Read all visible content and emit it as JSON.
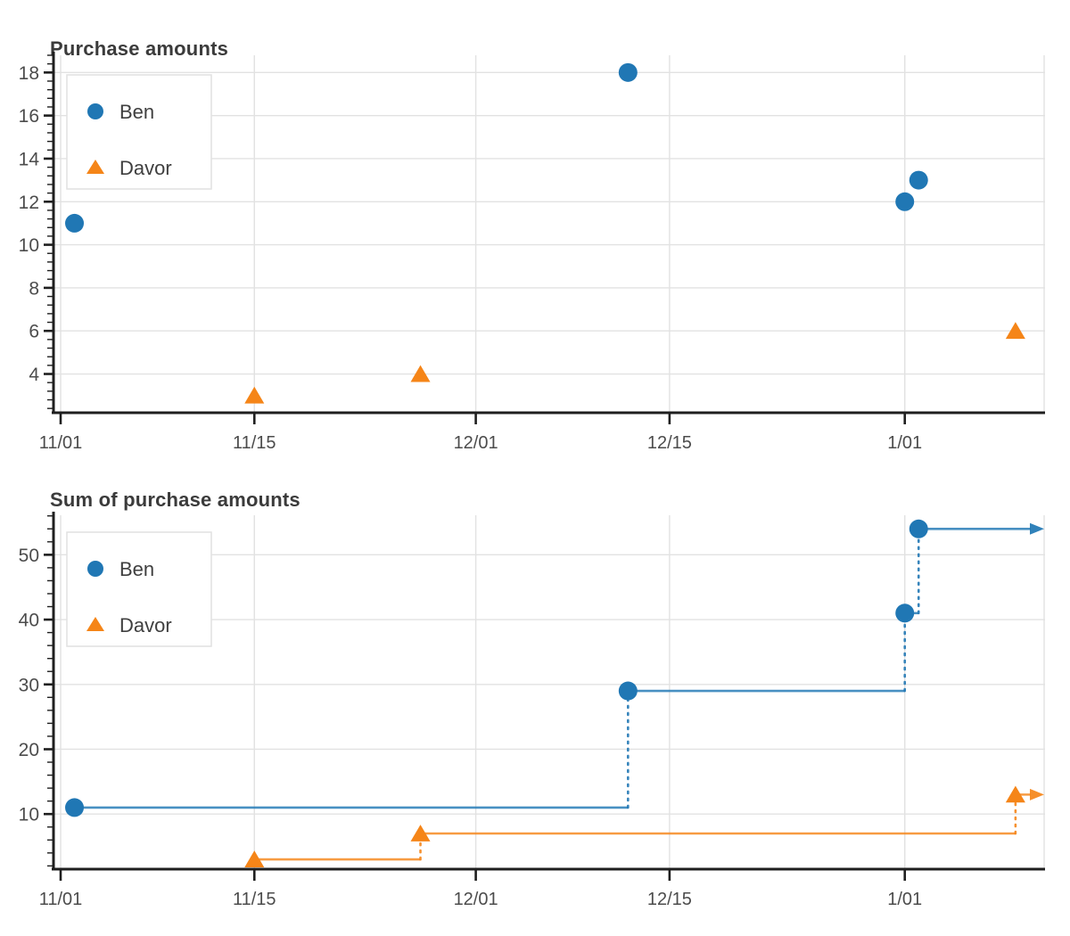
{
  "page": {
    "background": "#ffffff"
  },
  "colors": {
    "ben": "#2077b4",
    "davor": "#f58518",
    "axis": "#1f1f1f",
    "grid": "#e2e2e2",
    "tick_label": "#4c4c4c",
    "title": "#3b3b3b"
  },
  "chart_data": [
    {
      "type": "scatter",
      "title": "Purchase amounts",
      "x_axis": {
        "ticks": [
          {
            "day": 0,
            "label": "11/01"
          },
          {
            "day": 14,
            "label": "11/15"
          },
          {
            "day": 30,
            "label": "12/01"
          },
          {
            "day": 44,
            "label": "12/15"
          },
          {
            "day": 61,
            "label": "1/01"
          }
        ]
      },
      "y_axis": {
        "lim": [
          2.2,
          18.8
        ],
        "major_ticks": [
          4,
          6,
          8,
          10,
          12,
          14,
          16,
          18
        ],
        "minor_step": 0.4
      },
      "grid": true,
      "legend": {
        "position": "top-left",
        "entries": [
          "Ben",
          "Davor"
        ]
      },
      "series": [
        {
          "name": "Ben",
          "marker": "circle",
          "color": "#2077b4",
          "points": [
            {
              "date": "11/02",
              "day": 1,
              "value": 11
            },
            {
              "date": "12/12",
              "day": 41,
              "value": 18
            },
            {
              "date": "1/01",
              "day": 61,
              "value": 12
            },
            {
              "date": "1/02",
              "day": 62,
              "value": 13
            }
          ]
        },
        {
          "name": "Davor",
          "marker": "triangle",
          "color": "#f58518",
          "points": [
            {
              "date": "11/15",
              "day": 14,
              "value": 3
            },
            {
              "date": "11/27",
              "day": 26,
              "value": 4
            },
            {
              "date": "1/09",
              "day": 69,
              "value": 6
            }
          ]
        }
      ]
    },
    {
      "type": "step",
      "title": "Sum of purchase amounts",
      "x_axis": {
        "ticks": [
          {
            "day": 0,
            "label": "11/01"
          },
          {
            "day": 14,
            "label": "11/15"
          },
          {
            "day": 30,
            "label": "12/01"
          },
          {
            "day": 44,
            "label": "12/15"
          },
          {
            "day": 61,
            "label": "1/01"
          }
        ]
      },
      "y_axis": {
        "lim": [
          1.5,
          56.1
        ],
        "major_ticks": [
          10,
          20,
          30,
          40,
          50
        ],
        "minor_step": 2
      },
      "grid": true,
      "legend": {
        "position": "top-left",
        "entries": [
          "Ben",
          "Davor"
        ]
      },
      "arrow_to_right_edge": true,
      "series": [
        {
          "name": "Ben",
          "marker": "circle",
          "color": "#2077b4",
          "points": [
            {
              "date": "11/02",
              "day": 1,
              "value": 11
            },
            {
              "date": "12/12",
              "day": 41,
              "value": 29
            },
            {
              "date": "1/01",
              "day": 61,
              "value": 41
            },
            {
              "date": "1/02",
              "day": 62,
              "value": 54
            }
          ]
        },
        {
          "name": "Davor",
          "marker": "triangle",
          "color": "#f58518",
          "points": [
            {
              "date": "11/15",
              "day": 14,
              "value": 3
            },
            {
              "date": "11/27",
              "day": 26,
              "value": 7
            },
            {
              "date": "1/09",
              "day": 69,
              "value": 13
            }
          ]
        }
      ]
    }
  ]
}
